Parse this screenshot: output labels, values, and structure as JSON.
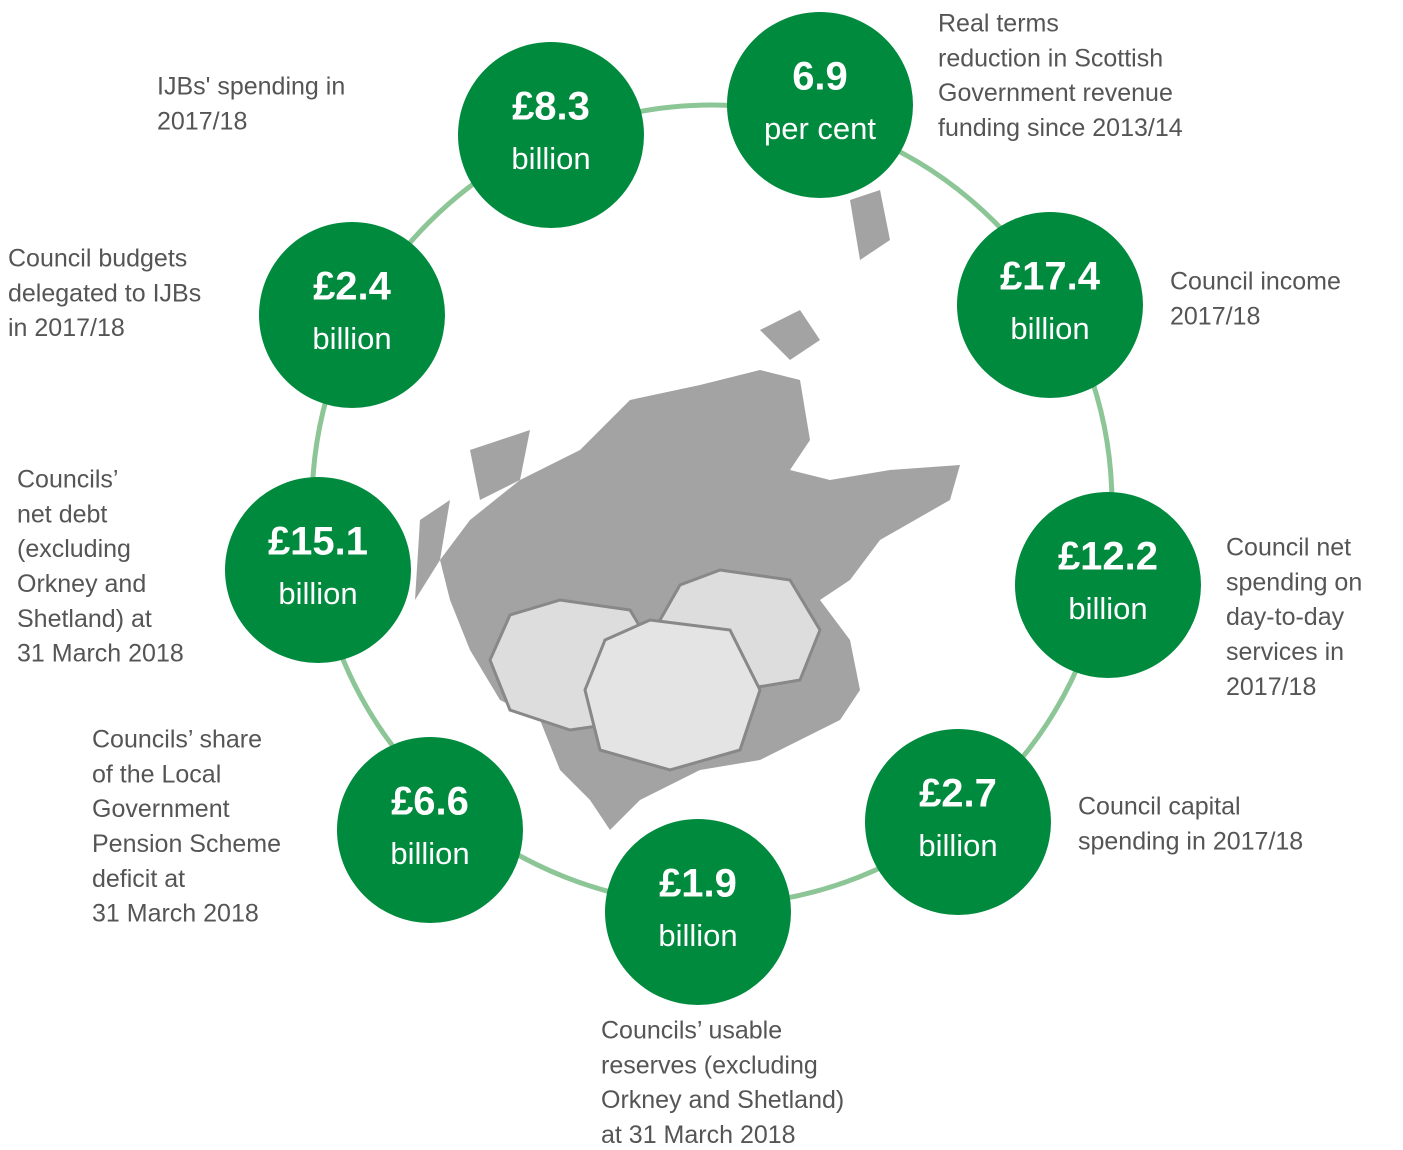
{
  "items": [
    {
      "value": "£8.3",
      "unit": "billion",
      "description": [
        "IJBs' spending in",
        "2017/18"
      ]
    },
    {
      "value": "6.9",
      "unit": "per cent",
      "description": [
        "Real terms",
        "reduction in Scottish",
        "Government revenue",
        "funding since 2013/14"
      ]
    },
    {
      "value": "£17.4",
      "unit": "billion",
      "description": [
        "Council income",
        "2017/18"
      ]
    },
    {
      "value": "£12.2",
      "unit": "billion",
      "description": [
        "Council net",
        "spending on",
        "day-to-day",
        "services in",
        "2017/18"
      ]
    },
    {
      "value": "£2.7",
      "unit": "billion",
      "description": [
        "Council capital",
        "spending in 2017/18"
      ]
    },
    {
      "value": "£1.9",
      "unit": "billion",
      "description": [
        "Councils’ usable",
        "reserves (excluding",
        "Orkney and Shetland)",
        "at 31 March 2018"
      ]
    },
    {
      "value": "£6.6",
      "unit": "billion",
      "description": [
        "Councils’ share",
        "of the Local",
        "Government",
        "Pension Scheme",
        "deficit at",
        "31 March 2018"
      ]
    },
    {
      "value": "£15.1",
      "unit": "billion",
      "description": [
        "Councils’",
        "net debt",
        "(excluding",
        "Orkney and",
        "Shetland) at",
        "31 March 2018"
      ]
    },
    {
      "value": "£2.4",
      "unit": "billion",
      "description": [
        "Council budgets",
        "delegated to IJBs",
        "in 2017/18"
      ]
    }
  ]
}
